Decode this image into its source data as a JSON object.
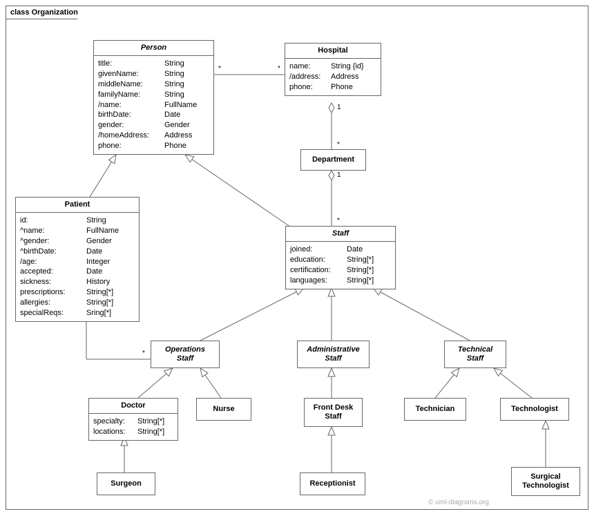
{
  "diagram": {
    "package_label": "class Organization",
    "watermark": "© uml-diagrams.org",
    "colors": {
      "border": "#666666",
      "background": "#ffffff",
      "text": "#000000",
      "watermark": "#aaaaaa"
    },
    "font": {
      "family": "Arial",
      "size_title": 11,
      "size_attr": 11,
      "size_mult": 10
    },
    "classes": {
      "Person": {
        "title": "Person",
        "abstract": true,
        "attrs": [
          [
            "title:",
            "String"
          ],
          [
            "givenName:",
            "String"
          ],
          [
            "middleName:",
            "String"
          ],
          [
            "familyName:",
            "String"
          ],
          [
            "/name:",
            "FullName"
          ],
          [
            "birthDate:",
            "Date"
          ],
          [
            "gender:",
            "Gender"
          ],
          [
            "/homeAddress:",
            "Address"
          ],
          [
            "phone:",
            "Phone"
          ]
        ]
      },
      "Hospital": {
        "title": "Hospital",
        "attrs": [
          [
            "name:",
            "String {id}"
          ],
          [
            "/address:",
            "Address"
          ],
          [
            "phone:",
            "Phone"
          ]
        ]
      },
      "Department": {
        "title": "Department"
      },
      "Patient": {
        "title": "Patient",
        "attrs": [
          [
            "id:",
            "String"
          ],
          [
            "^name:",
            "FullName"
          ],
          [
            "^gender:",
            "Gender"
          ],
          [
            "^birthDate:",
            "Date"
          ],
          [
            "/age:",
            "Integer"
          ],
          [
            "accepted:",
            "Date"
          ],
          [
            "sickness:",
            "History"
          ],
          [
            "prescriptions:",
            "String[*]"
          ],
          [
            "allergies:",
            "String[*]"
          ],
          [
            "specialReqs:",
            "Sring[*]"
          ]
        ]
      },
      "Staff": {
        "title": "Staff",
        "abstract": true,
        "attrs": [
          [
            "joined:",
            "Date"
          ],
          [
            "education:",
            "String[*]"
          ],
          [
            "certification:",
            "String[*]"
          ],
          [
            "languages:",
            "String[*]"
          ]
        ]
      },
      "OperationsStaff": {
        "title": "Operations\nStaff",
        "abstract": true
      },
      "AdministrativeStaff": {
        "title": "Administrative\nStaff",
        "abstract": true
      },
      "TechnicalStaff": {
        "title": "Technical\nStaff",
        "abstract": true
      },
      "Doctor": {
        "title": "Doctor",
        "attrs": [
          [
            "specialty:",
            "String[*]"
          ],
          [
            "locations:",
            "String[*]"
          ]
        ]
      },
      "Nurse": {
        "title": "Nurse"
      },
      "FrontDeskStaff": {
        "title": "Front Desk\nStaff"
      },
      "Technician": {
        "title": "Technician"
      },
      "Technologist": {
        "title": "Technologist"
      },
      "Surgeon": {
        "title": "Surgeon"
      },
      "Receptionist": {
        "title": "Receptionist"
      },
      "SurgicalTechnologist": {
        "title": "Surgical\nTechnologist"
      }
    },
    "multiplicities": {
      "person_hospital_left": "*",
      "person_hospital_right": "*",
      "hospital_dept_top": "1",
      "hospital_dept_bottom": "*",
      "dept_staff_top": "1",
      "dept_staff_bottom": "*",
      "patient_ops_top": "*",
      "patient_ops_bottom": "*"
    }
  }
}
